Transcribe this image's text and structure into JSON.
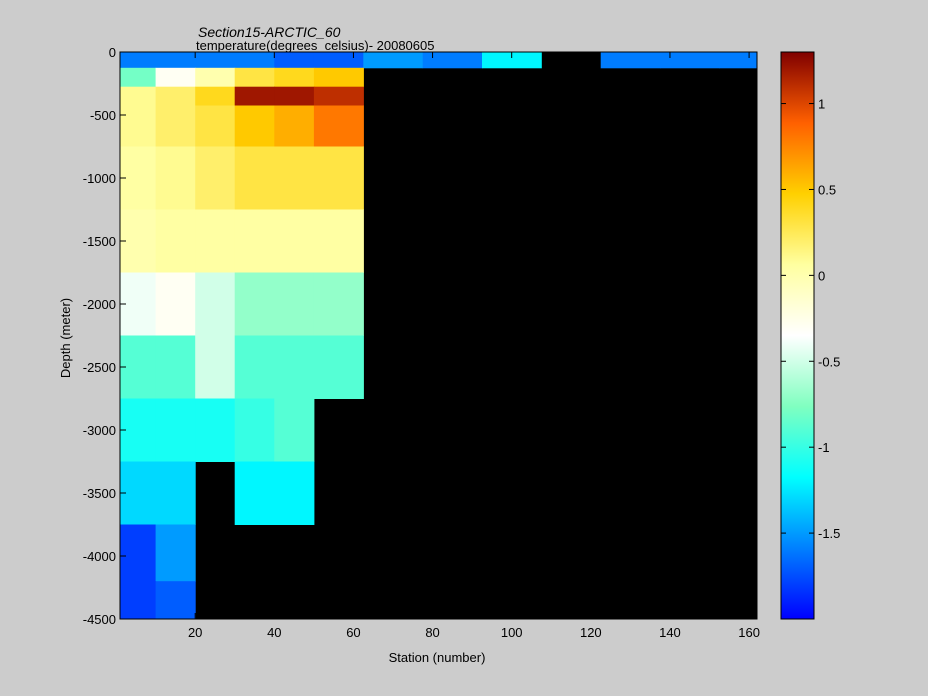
{
  "chart_data": {
    "type": "heatmap",
    "title": "Section15-ARCTIC_60",
    "subtitle": "temperature(degrees_celsius)- 20080605",
    "xlabel": "Station (number)",
    "ylabel": "Depth (meter)",
    "x_ticks": [
      20,
      40,
      60,
      80,
      100,
      120,
      140,
      160
    ],
    "y_ticks": [
      0,
      -500,
      -1000,
      -1500,
      -2000,
      -2500,
      -3000,
      -3500,
      -4000,
      -4500
    ],
    "xlim": [
      1,
      162
    ],
    "ylim": [
      -4500,
      0
    ],
    "colorbar": {
      "limits": [
        -2,
        1.3
      ],
      "ticks": [
        1,
        0.5,
        0,
        -0.5,
        -1,
        -1.5
      ],
      "colormap": "jet"
    },
    "no_data_color": "#000000",
    "grid": false,
    "data": {
      "description_units": "temperature in degrees celsius by station and depth",
      "stations": [
        5,
        15,
        25,
        35,
        45,
        55,
        70,
        85,
        100,
        115,
        130,
        145,
        160
      ],
      "depths": [
        -50,
        -200,
        -350,
        -500,
        -1000,
        -1500,
        -2000,
        -2500,
        -3000,
        -3500,
        -4000,
        -4400
      ],
      "temperature": [
        [
          -1.6,
          -1.6,
          -1.6,
          -1.6,
          -1.7,
          -1.7,
          -1.5,
          -1.6,
          -1.2,
          null,
          -1.6,
          -1.6,
          -1.6
        ],
        [
          -0.8,
          -0.3,
          0.0,
          0.3,
          0.4,
          0.5,
          null,
          null,
          null,
          null,
          null,
          null,
          null
        ],
        [
          0.1,
          0.2,
          0.4,
          1.2,
          1.2,
          1.1,
          null,
          null,
          null,
          null,
          null,
          null,
          null
        ],
        [
          0.1,
          0.2,
          0.3,
          0.5,
          0.6,
          0.8,
          null,
          null,
          null,
          null,
          null,
          null,
          null
        ],
        [
          0.05,
          0.1,
          0.2,
          0.3,
          0.3,
          0.3,
          null,
          null,
          null,
          null,
          null,
          null,
          null
        ],
        [
          0.0,
          0.05,
          0.05,
          0.05,
          0.05,
          0.05,
          null,
          null,
          null,
          null,
          null,
          null,
          null
        ],
        [
          -0.4,
          -0.3,
          -0.5,
          -0.7,
          -0.7,
          -0.7,
          null,
          null,
          null,
          null,
          null,
          null,
          null
        ],
        [
          -0.9,
          -0.9,
          -0.5,
          -0.9,
          -0.9,
          -0.9,
          null,
          null,
          null,
          null,
          null,
          null,
          null
        ],
        [
          -1.1,
          -1.1,
          -1.1,
          -1.0,
          -0.9,
          null,
          null,
          null,
          null,
          null,
          null,
          null,
          null
        ],
        [
          -1.3,
          -1.3,
          null,
          -1.2,
          -1.2,
          null,
          null,
          null,
          null,
          null,
          null,
          null,
          null
        ],
        [
          -1.8,
          -1.5,
          null,
          null,
          null,
          null,
          null,
          null,
          null,
          null,
          null,
          null,
          null
        ],
        [
          -1.8,
          -1.7,
          null,
          null,
          null,
          null,
          null,
          null,
          null,
          null,
          null,
          null,
          null
        ]
      ]
    }
  }
}
